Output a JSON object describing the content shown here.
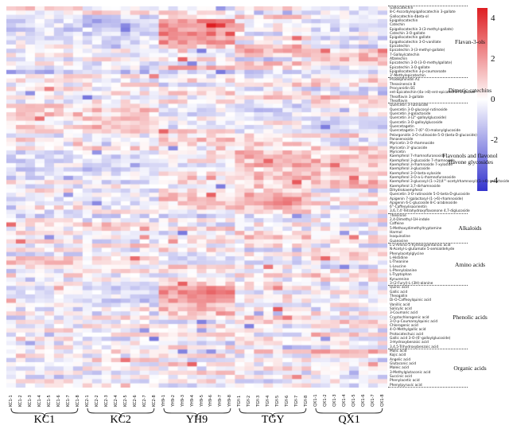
{
  "colors": {
    "positive_max": "#de1e22",
    "negative_max": "#3434cd",
    "midpoint": "#ffffff",
    "background": "#ffffff",
    "label_text": "#1c1c1c"
  },
  "colorbar": {
    "tick_labels": [
      "4",
      "2",
      "0",
      "-2",
      "-4"
    ],
    "tick_values": [
      4,
      2,
      0,
      -2,
      -4
    ]
  },
  "footer": {
    "groups": [
      {
        "name": "KC1",
        "samples": [
          "KC1-1",
          "KC1-2",
          "KC1-3",
          "KC1-4",
          "KC1-5",
          "KC1-6",
          "KC1-7",
          "KC1-8"
        ]
      },
      {
        "name": "KC2",
        "samples": [
          "KC2-1",
          "KC2-2",
          "KC2-3",
          "KC2-4",
          "KC2-5",
          "KC2-6",
          "KC2-7",
          "KC2-8"
        ]
      },
      {
        "name": "YH9",
        "samples": [
          "YH9-1",
          "YH9-2",
          "YH9-3",
          "YH9-4",
          "YH9-5",
          "YH9-6",
          "YH9-7",
          "YH9-8"
        ]
      },
      {
        "name": "TGY",
        "samples": [
          "TGY-1",
          "TGY-2",
          "TGY-3",
          "TGY-4",
          "TGY-5",
          "TGY-6",
          "TGY-7",
          "TGY-8"
        ]
      },
      {
        "name": "QX1",
        "samples": [
          "QX1-1",
          "QX1-2",
          "QX1-3",
          "QX1-4",
          "QX1-5",
          "QX1-6",
          "QX1-7",
          "QX1-8"
        ]
      }
    ]
  },
  "chart_data": {
    "type": "heatmap",
    "value_kind": "z-score abundance",
    "domain": [
      -4.5,
      4.5
    ],
    "legend_position": "top-right",
    "groups": [
      "KC1",
      "KC2",
      "YH9",
      "TGY",
      "QX1"
    ],
    "samples_per_group": 8,
    "columns": [
      "KC1-1",
      "KC1-2",
      "KC1-3",
      "KC1-4",
      "KC1-5",
      "KC1-6",
      "KC1-7",
      "KC1-8",
      "KC2-1",
      "KC2-2",
      "KC2-3",
      "KC2-4",
      "KC2-5",
      "KC2-6",
      "KC2-7",
      "KC2-8",
      "YH9-1",
      "YH9-2",
      "YH9-3",
      "YH9-4",
      "YH9-5",
      "YH9-6",
      "YH9-7",
      "YH9-8",
      "TGY-1",
      "TGY-2",
      "TGY-3",
      "TGY-4",
      "TGY-5",
      "TGY-6",
      "TGY-7",
      "TGY-8",
      "QX1-1",
      "QX1-2",
      "QX1-3",
      "QX1-4",
      "QX1-5",
      "QX1-6",
      "QX1-7",
      "QX1-8"
    ],
    "sections": [
      {
        "name": "Flavan-3-ols",
        "rows": [
          [
            "Gallocatechin",
            1.0,
            -0.2,
            -0.5,
            0.6,
            -0.3
          ],
          [
            "8-C-Ascorbylepigallocatechin 3-gallate",
            0.1,
            0.9,
            0.6,
            -0.6,
            -0.4
          ],
          [
            "Gallocatechin-4beta-ol",
            -0.6,
            -0.8,
            0.4,
            0.9,
            0.2
          ],
          [
            "Epigallocatechin",
            -0.8,
            -0.9,
            2.2,
            -0.3,
            -0.5
          ],
          [
            "Catechin",
            -0.5,
            -1.2,
            2.5,
            0.2,
            -0.7
          ],
          [
            "Epigallocatechin 3-(3-methyl-gallate)",
            -0.9,
            -0.6,
            2.0,
            0.5,
            -0.8
          ],
          [
            "Catechin 3-O-gallate",
            -0.4,
            -1.0,
            2.4,
            -0.6,
            0.3
          ],
          [
            "Epigallocatechin gallate",
            -0.7,
            -0.5,
            1.8,
            0.8,
            -0.9
          ],
          [
            "Epigallocatechin 3-O-vanillate",
            -0.3,
            -0.8,
            2.2,
            -0.4,
            -0.2
          ],
          [
            "Epicatechin",
            0.4,
            -0.6,
            0.9,
            1.2,
            -1.0
          ],
          [
            "Epicatechin 3-(3-methyl-gallate)",
            -0.5,
            0.3,
            -0.8,
            1.5,
            0.6
          ],
          [
            "7-Galloylcatechin",
            0.2,
            -0.4,
            -0.6,
            0.9,
            1.1
          ],
          [
            "Afzelechin",
            -0.6,
            0.5,
            0.8,
            -0.9,
            1.3
          ],
          [
            "Epicatechin 3-O-(3-O-methylgallate)",
            0.3,
            -0.7,
            -0.3,
            1.1,
            0.8
          ],
          [
            "Epicatechin 3-O-gallate",
            -0.8,
            -0.3,
            1.4,
            0.6,
            -0.5
          ],
          [
            "Epigallocatechin 3-p-coumaroate",
            -1.6,
            -1.3,
            -1.0,
            -0.8,
            -1.1
          ],
          [
            "3'-Methylepicatechin",
            0.5,
            0.8,
            -0.4,
            -0.7,
            0.2
          ]
        ]
      },
      {
        "name": "Dimeric catechins",
        "rows": [
          [
            "Prodelphinidin A1",
            0.3,
            -0.5,
            0.7,
            -0.2,
            0.9
          ],
          [
            "Theasinensin B",
            -0.4,
            0.6,
            -0.8,
            1.2,
            0.3
          ],
          [
            "Procyanidin B1",
            0.7,
            -0.3,
            0.5,
            -0.6,
            -0.9
          ],
          [
            "ent-Epicatechin-(4a->8)-ent-epicatechin 3-gallate",
            -0.6,
            0.4,
            1.0,
            0.5,
            -0.7
          ],
          [
            "Theaflavin 3-gallate",
            0.2,
            -0.8,
            -0.3,
            0.9,
            1.4
          ],
          [
            "Theaflavin",
            -0.5,
            0.3,
            0.6,
            -0.4,
            0.8
          ]
        ]
      },
      {
        "name": "Flavonols and flavonol\n/flavone glycosides",
        "rows": [
          [
            "Quercetin 3-rutinoside",
            0.9,
            0.4,
            -0.6,
            -0.8,
            0.5
          ],
          [
            "Quercetin 3-O-glucosyl-rutinoside",
            0.6,
            1.1,
            -0.4,
            -0.9,
            -0.3
          ],
          [
            "Quercetin 3-galactoside",
            1.2,
            0.5,
            -0.7,
            -0.5,
            0.4
          ],
          [
            "Quercetin 3-(2''-galloylglucoside)",
            0.4,
            0.9,
            0.3,
            -0.8,
            -0.6
          ],
          [
            "Quercetin 3-O-galloylglucoside",
            -0.3,
            0.7,
            -0.5,
            0.6,
            -0.8
          ],
          [
            "Quercetagetin",
            0.8,
            1.3,
            -0.6,
            -0.4,
            -0.9
          ],
          [
            "Quercetagetin 7-(6''-O)-malonylglucoside",
            0.5,
            0.8,
            0.9,
            -0.7,
            -0.5
          ],
          [
            "Pelargonidin 3-O-rutinoside-5-O-(beta-D-glucoside)",
            -0.6,
            -0.3,
            0.4,
            0.8,
            1.0
          ],
          [
            "Panasenoside",
            0.7,
            -0.5,
            1.2,
            0.3,
            -0.8
          ],
          [
            "Myricetin 3-O-rhamnoside",
            -0.4,
            0.2,
            0.6,
            0.9,
            -0.6
          ],
          [
            "Myricetin 3'-glucoside",
            0.3,
            0.8,
            -0.5,
            0.4,
            1.1
          ],
          [
            "Myricetin",
            -0.7,
            -0.4,
            0.5,
            1.3,
            0.6
          ],
          [
            "Kaempferol 7-rhamnofuranoside",
            -0.5,
            -0.8,
            0.3,
            1.6,
            0.9
          ],
          [
            "Kaempferol 3-glucoside 7-rhamnoside",
            -0.8,
            -0.6,
            0.4,
            1.2,
            1.4
          ],
          [
            "Kaempferol 3-rhamnoside 7-xyloside",
            -0.3,
            -0.9,
            -0.5,
            1.5,
            1.0
          ],
          [
            "Kaempferol 3-glucoside",
            -1.2,
            -1.0,
            -0.7,
            0.6,
            0.9
          ],
          [
            "Kaempferol 3-O-beta-xyloside",
            -0.6,
            -0.4,
            0.8,
            1.1,
            1.3
          ],
          [
            "Kaempferol 3-O-a-L-rhamnofuranoside",
            -0.9,
            -0.5,
            0.2,
            1.4,
            0.7
          ],
          [
            "Kaempferol 3-glucosyl-(1->2)(4'''-acetylrhamnosyl)(1->6)-galactoside",
            0.4,
            -0.7,
            0.6,
            0.9,
            1.5
          ],
          [
            "Kaempferol 3,7-dirhamnoside",
            -0.5,
            0.3,
            -0.8,
            1.0,
            1.2
          ],
          [
            "Dihydrokaempferol",
            0.6,
            -0.6,
            0.4,
            0.7,
            -0.9
          ],
          [
            "Quercetin 3-O-rutinoside 5-O-beta-D-glucoside",
            -0.4,
            -0.2,
            0.9,
            1.3,
            0.5
          ],
          [
            "Apigenin 7-(galactosyl-(1->6)-rhamnoside)",
            -0.7,
            -0.5,
            1.1,
            1.8,
            0.4
          ],
          [
            "Apigenin 6-C-glucoside 8-C-arabinoside",
            -0.3,
            -0.8,
            0.7,
            2.0,
            0.9
          ],
          [
            "6''-Caffeoylisoorientin",
            0.5,
            -0.4,
            0.8,
            1.2,
            -0.6
          ],
          [
            "3,6,7,4'-Tetrahydroxyflavanone 4,7-diglucoside",
            -0.6,
            0.4,
            -0.3,
            0.8,
            0.6
          ]
        ]
      },
      {
        "name": "Alkaloids",
        "rows": [
          [
            "Thesinine",
            -1.0,
            -0.8,
            -1.2,
            -0.6,
            -0.9
          ],
          [
            "2,4-Dimethyl-1H-indole",
            0.3,
            -0.5,
            0.6,
            -0.4,
            0.8
          ],
          [
            "Caffeine",
            0.8,
            1.2,
            -0.6,
            0.4,
            -0.8
          ],
          [
            "5-Methoxydimethyltryptamine",
            -0.4,
            0.6,
            0.9,
            -0.7,
            0.3
          ],
          [
            "Harmol",
            0.5,
            -0.3,
            -0.7,
            0.8,
            -0.5
          ],
          [
            "Isoquinoline",
            -0.6,
            0.4,
            0.3,
            1.1,
            0.7
          ],
          [
            "Guanosine",
            0.7,
            -0.8,
            0.5,
            -0.3,
            0.9
          ]
        ]
      },
      {
        "name": "Amino acids",
        "rows": [
          [
            "L-2-Amino-5-hydroxypentanoic acid",
            -0.5,
            0.9,
            -0.4,
            0.6,
            -0.7
          ],
          [
            "N-Acetyl-L-glutamate 5-semialdehyde",
            0.4,
            -0.6,
            0.8,
            -0.9,
            0.5
          ],
          [
            "Phenylacetylglycine",
            -0.8,
            0.3,
            -0.5,
            0.7,
            1.0
          ],
          [
            "L-Histidine",
            0.9,
            0.5,
            -0.7,
            -0.4,
            0.6
          ],
          [
            "L-Theanine",
            1.1,
            0.7,
            -0.9,
            -0.6,
            -0.3
          ],
          [
            "L-Leucine",
            0.5,
            -0.4,
            0.8,
            0.3,
            -0.9
          ],
          [
            "L-Phenylalanine",
            -0.3,
            0.8,
            0.4,
            -0.6,
            0.7
          ],
          [
            "L-Tryptophan",
            0.6,
            -0.7,
            -0.4,
            0.9,
            0.3
          ],
          [
            "Kynurenine",
            -0.9,
            0.4,
            0.7,
            -0.5,
            0.8
          ],
          [
            "3-(2-Furyl)-L-(3H)-alanine",
            0.3,
            -0.5,
            0.9,
            0.6,
            -0.8
          ]
        ]
      },
      {
        "name": "Phenolic acids",
        "rows": [
          [
            "Quinic acid",
            -0.6,
            -0.9,
            2.0,
            0.4,
            -0.5
          ],
          [
            "Gallic acid",
            -0.4,
            -0.7,
            2.3,
            -0.5,
            0.3
          ],
          [
            "Theogallin",
            -0.8,
            -0.5,
            1.8,
            0.6,
            -0.6
          ],
          [
            "Di-O-Caffeoylquinic acid",
            -0.5,
            -1.0,
            2.1,
            0.3,
            -0.4
          ],
          [
            "Vanillic acid",
            0.4,
            -0.6,
            1.5,
            -0.8,
            0.5
          ],
          [
            "Salicylic acid",
            -0.7,
            0.5,
            1.2,
            0.8,
            -0.9
          ],
          [
            "3-Coumaric acid",
            0.5,
            -0.8,
            0.9,
            -0.4,
            0.7
          ],
          [
            "Cryptochlorogenic acid",
            -0.9,
            0.6,
            0.4,
            1.0,
            -0.5
          ],
          [
            "3-O-p-Coumaroylquinic acid",
            0.3,
            -0.4,
            -0.8,
            0.7,
            0.9
          ],
          [
            "Chlorogenic acid",
            -0.5,
            0.8,
            0.6,
            -0.7,
            0.4
          ],
          [
            "4-O-Methylgallic acid",
            0.7,
            -0.6,
            -0.3,
            0.5,
            -0.8
          ],
          [
            "Protocatechuic acid",
            -0.4,
            0.5,
            0.9,
            -0.6,
            1.2
          ],
          [
            "Gallic acid 3-O-(6'-galloylglucoside)",
            0.6,
            -0.7,
            0.3,
            0.8,
            -0.5
          ],
          [
            "3-Hydroxybenzoic acid",
            -0.6,
            0.4,
            -0.9,
            0.5,
            0.3
          ],
          [
            "3,4,5-Trihydroxybenzoic acid",
            0.4,
            -0.3,
            0.7,
            -0.8,
            -0.4
          ]
        ]
      },
      {
        "name": "Organic acids",
        "rows": [
          [
            "Malic acid",
            -0.5,
            0.7,
            -0.4,
            0.9,
            1.5
          ],
          [
            "Kojic acid",
            0.8,
            -0.5,
            0.6,
            -0.7,
            0.4
          ],
          [
            "Angelic acid",
            -0.4,
            0.9,
            -0.6,
            0.5,
            -0.8
          ],
          [
            "Glutaconic acid",
            0.5,
            -0.7,
            0.8,
            -0.3,
            0.6
          ],
          [
            "Maleic acid",
            -0.8,
            0.4,
            -0.5,
            0.7,
            -0.4
          ],
          [
            "3-Methylglutaconic acid",
            0.3,
            -0.6,
            0.9,
            -0.8,
            0.5
          ],
          [
            "Succinic acid",
            -0.7,
            0.5,
            -0.3,
            0.6,
            -0.9
          ],
          [
            "Phenylacetic acid",
            0.6,
            -0.4,
            0.5,
            -0.9,
            0.3
          ],
          [
            "Phenylpyruvic acid",
            -0.3,
            0.8,
            -0.7,
            0.4,
            -0.6
          ]
        ]
      }
    ],
    "render": {
      "seed": 11,
      "noise": 0.85
    }
  }
}
